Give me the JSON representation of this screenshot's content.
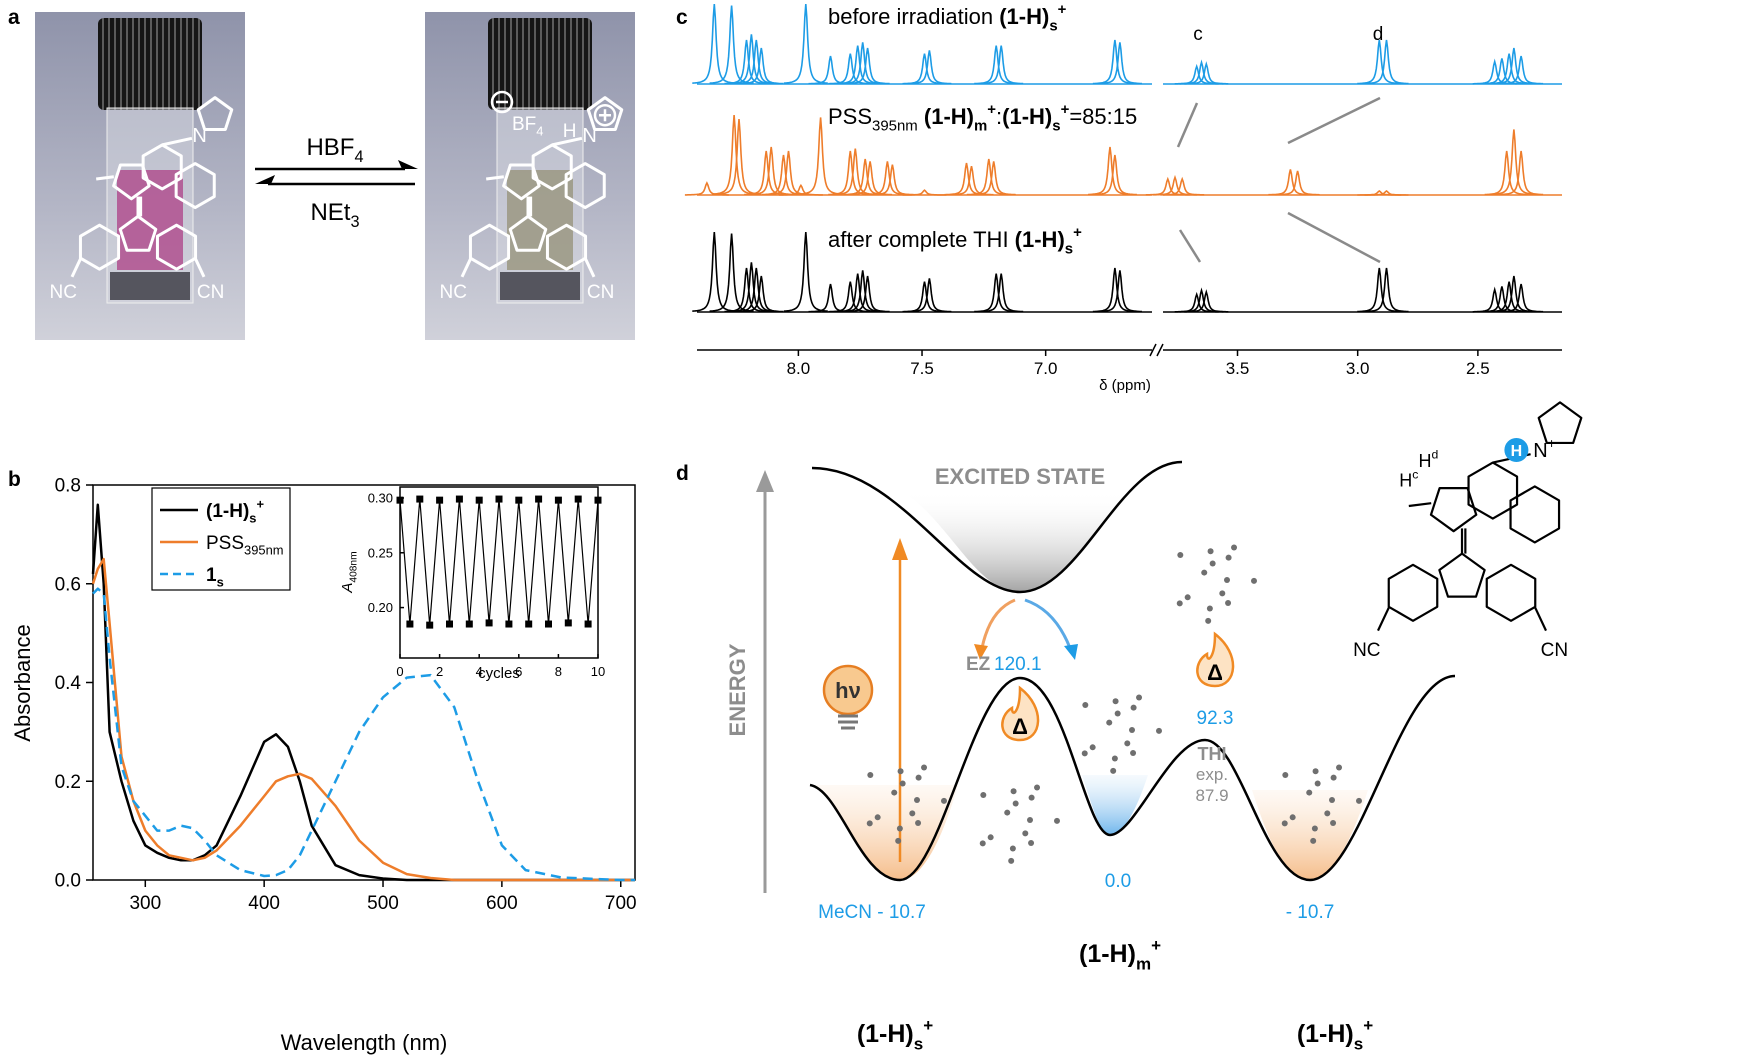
{
  "panel_labels": [
    "a",
    "b",
    "c",
    "d"
  ],
  "panel_a": {
    "forward": [
      {
        "text": "HBF"
      },
      {
        "text": "4",
        "style": "sub"
      }
    ],
    "backward": [
      {
        "text": "NEt"
      },
      {
        "text": "3",
        "style": "sub"
      }
    ],
    "left_atoms": {
      "n": "N",
      "nc": "NC",
      "cn": "CN"
    },
    "right_atoms": {
      "n": "N",
      "h": "H",
      "nc": "NC",
      "cn": "CN",
      "counterion": [
        {
          "text": "BF"
        },
        {
          "text": "4",
          "style": "sub"
        }
      ]
    }
  },
  "chart_data": [
    {
      "type": "line",
      "xlabel": "Wavelength (nm)",
      "ylabel": "Absorbance",
      "xlim": [
        256,
        712
      ],
      "xticks": [
        300,
        400,
        500,
        600,
        700
      ],
      "ylim": [
        0,
        0.8
      ],
      "yticks": [
        {
          "value": 0,
          "label": "0.0"
        },
        0.2,
        0.4,
        0.6,
        0.8
      ],
      "legend": "upper left",
      "x": [
        256,
        260,
        265,
        270,
        280,
        290,
        300,
        310,
        320,
        330,
        340,
        350,
        360,
        380,
        400,
        410,
        420,
        430,
        440,
        460,
        480,
        500,
        520,
        540,
        560,
        580,
        600,
        620,
        650,
        700,
        712
      ],
      "series": [
        {
          "name": [
            {
              "text": "(1-H)",
              "style": "b"
            },
            {
              "text": "s",
              "style": "bsub"
            },
            {
              "text": "+",
              "style": "bsup"
            }
          ],
          "color": "#000000",
          "dash": "solid",
          "values": [
            0.62,
            0.76,
            0.6,
            0.3,
            0.2,
            0.12,
            0.07,
            0.055,
            0.045,
            0.04,
            0.04,
            0.05,
            0.07,
            0.17,
            0.28,
            0.295,
            0.27,
            0.2,
            0.11,
            0.03,
            0.01,
            0.003,
            0,
            0,
            0,
            0,
            0,
            0,
            0,
            0,
            0
          ]
        },
        {
          "name": [
            {
              "text": "PSS"
            },
            {
              "text": "395nm",
              "style": "sub"
            }
          ],
          "color": "#ee7d2b",
          "dash": "solid",
          "values": [
            0.6,
            0.63,
            0.65,
            0.52,
            0.25,
            0.16,
            0.1,
            0.07,
            0.05,
            0.045,
            0.04,
            0.045,
            0.06,
            0.11,
            0.17,
            0.2,
            0.21,
            0.215,
            0.205,
            0.15,
            0.08,
            0.035,
            0.012,
            0.004,
            0,
            0,
            0,
            0,
            0,
            0,
            0
          ]
        },
        {
          "name": [
            {
              "text": "1",
              "style": "b"
            },
            {
              "text": "s",
              "style": "bsub"
            }
          ],
          "color": "#1d9ce6",
          "dash": "dashed",
          "values": [
            0.58,
            0.59,
            0.58,
            0.45,
            0.23,
            0.16,
            0.13,
            0.1,
            0.1,
            0.11,
            0.105,
            0.08,
            0.05,
            0.02,
            0.008,
            0.01,
            0.02,
            0.05,
            0.1,
            0.2,
            0.3,
            0.37,
            0.41,
            0.415,
            0.35,
            0.2,
            0.07,
            0.02,
            0.005,
            0,
            0
          ]
        }
      ]
    },
    {
      "type": "line",
      "markers": "square",
      "xlabel": "cycles",
      "ylabel": [
        {
          "text": "A",
          "style": "i"
        },
        {
          "text": "408nm",
          "style": "sub"
        }
      ],
      "xlim": [
        0,
        10
      ],
      "xticks": [
        0,
        2,
        4,
        6,
        8,
        10
      ],
      "ylim": [
        0.154,
        0.31
      ],
      "yticks": [
        {
          "value": 0.2,
          "label": "0.20"
        },
        {
          "value": 0.25,
          "label": "0.25"
        },
        {
          "value": 0.3,
          "label": "0.30"
        }
      ],
      "x": [
        0,
        0.5,
        1,
        1.5,
        2,
        2.5,
        3,
        3.5,
        4,
        4.5,
        5,
        5.5,
        6,
        6.5,
        7,
        7.5,
        8,
        8.5,
        9,
        9.5,
        10
      ],
      "series": [
        {
          "color": "#000000",
          "values": [
            0.298,
            0.185,
            0.299,
            0.184,
            0.298,
            0.185,
            0.299,
            0.185,
            0.298,
            0.186,
            0.299,
            0.185,
            0.298,
            0.185,
            0.299,
            0.185,
            0.298,
            0.186,
            0.299,
            0.185,
            0.298
          ]
        }
      ]
    },
    {
      "type": "nmr",
      "xlabel": "δ (ppm)",
      "peak_labels": [
        "c",
        "d"
      ],
      "segments": [
        {
          "xlim": [
            8.41,
            6.57
          ],
          "xticks": [
            {
              "value": 8,
              "label": "8.0"
            },
            7.5,
            {
              "value": 7,
              "label": "7.0"
            }
          ]
        },
        {
          "xlim": [
            3.81,
            2.15
          ],
          "xticks": [
            3.5,
            {
              "value": 3,
              "label": "3.0"
            },
            2.5
          ]
        }
      ],
      "series": [
        {
          "color": "#1d9ce6",
          "label": [
            {
              "text": "before irradiation "
            },
            {
              "text": "(1-H)",
              "style": "b"
            },
            {
              "text": "s",
              "style": "bsub"
            },
            {
              "text": "+",
              "style": "bsup"
            }
          ],
          "x": [
            8.34,
            8.27,
            8.21,
            8.19,
            8.17,
            8.15,
            7.97,
            7.87,
            7.79,
            7.76,
            7.74,
            7.72,
            7.49,
            7.47,
            7.2,
            7.18,
            6.72,
            6.7,
            3.67,
            3.65,
            3.63,
            2.91,
            2.88,
            2.43,
            2.4,
            2.37,
            2.35,
            2.32
          ],
          "values": [
            1.0,
            0.98,
            0.55,
            0.62,
            0.55,
            0.45,
            1.0,
            0.35,
            0.38,
            0.48,
            0.52,
            0.45,
            0.38,
            0.42,
            0.48,
            0.48,
            0.55,
            0.52,
            0.22,
            0.27,
            0.25,
            0.55,
            0.55,
            0.28,
            0.32,
            0.38,
            0.45,
            0.35
          ]
        },
        {
          "color": "#ee7d2b",
          "label": [
            {
              "text": "PSS"
            },
            {
              "text": "395nm",
              "style": "sub"
            },
            {
              "text": " (1-H)",
              "style": "b"
            },
            {
              "text": "m",
              "style": "bsub"
            },
            {
              "text": "+",
              "style": "bsup"
            },
            {
              "text": ":"
            },
            {
              "text": "(1-H)",
              "style": "b"
            },
            {
              "text": "s",
              "style": "bsub"
            },
            {
              "text": "+",
              "style": "bsup"
            },
            {
              "text": "=85:15"
            }
          ],
          "x": [
            8.37,
            8.26,
            8.24,
            8.13,
            8.11,
            8.06,
            8.04,
            7.99,
            7.91,
            7.79,
            7.77,
            7.73,
            7.71,
            7.64,
            7.62,
            7.49,
            7.32,
            7.3,
            7.23,
            7.21,
            6.74,
            6.72,
            3.79,
            3.76,
            3.73,
            3.28,
            3.25,
            2.91,
            2.88,
            2.38,
            2.35,
            2.32
          ],
          "values": [
            0.15,
            1.0,
            0.95,
            0.55,
            0.6,
            0.5,
            0.55,
            0.12,
            0.97,
            0.55,
            0.58,
            0.45,
            0.42,
            0.42,
            0.38,
            0.06,
            0.4,
            0.36,
            0.45,
            0.42,
            0.6,
            0.5,
            0.2,
            0.22,
            0.2,
            0.32,
            0.3,
            0.05,
            0.05,
            0.55,
            0.82,
            0.55
          ]
        },
        {
          "color": "#000000",
          "label": [
            {
              "text": "after complete THI "
            },
            {
              "text": "(1-H)",
              "style": "b"
            },
            {
              "text": "s",
              "style": "bsub"
            },
            {
              "text": "+",
              "style": "bsup"
            }
          ],
          "x": [
            8.34,
            8.27,
            8.21,
            8.19,
            8.17,
            8.15,
            7.97,
            7.87,
            7.79,
            7.76,
            7.74,
            7.72,
            7.49,
            7.47,
            7.2,
            7.18,
            6.72,
            6.7,
            3.67,
            3.65,
            3.63,
            2.91,
            2.88,
            2.43,
            2.4,
            2.37,
            2.35,
            2.32
          ],
          "values": [
            1.0,
            0.98,
            0.55,
            0.62,
            0.55,
            0.45,
            1.0,
            0.35,
            0.38,
            0.48,
            0.52,
            0.45,
            0.38,
            0.42,
            0.48,
            0.48,
            0.55,
            0.52,
            0.22,
            0.27,
            0.25,
            0.55,
            0.55,
            0.28,
            0.32,
            0.38,
            0.45,
            0.35
          ]
        }
      ]
    }
  ],
  "panel_d": {
    "excited_state": "EXCITED STATE",
    "energy_axis": "ENERGY",
    "hv": "hν",
    "delta": [
      "Δ",
      "Δ"
    ],
    "ez": "EZ",
    "ez_value": "120.1",
    "thi_value": "92.3",
    "thi": "THI",
    "exp": "exp.",
    "exp_value": "87.9",
    "m_value": "0.0",
    "s_left_value": "MeCN - 10.7",
    "s_right_value": "- 10.7",
    "s_left": [
      {
        "text": "(1-H)",
        "style": "b"
      },
      {
        "text": "s",
        "style": "bsub"
      },
      {
        "text": "+",
        "style": "bsup"
      }
    ],
    "m_label": [
      {
        "text": "(1-H)",
        "style": "b"
      },
      {
        "text": "m",
        "style": "bsub"
      },
      {
        "text": "+",
        "style": "bsup"
      }
    ],
    "s_right": [
      {
        "text": "(1-H)",
        "style": "b"
      },
      {
        "text": "s",
        "style": "bsub"
      },
      {
        "text": "+",
        "style": "bsup"
      }
    ],
    "structure": {
      "hd": [
        {
          "text": "H"
        },
        {
          "text": "d",
          "style": "sup"
        }
      ],
      "hc": [
        {
          "text": "H"
        },
        {
          "text": "c",
          "style": "sup"
        }
      ],
      "h": "H",
      "n": [
        {
          "text": "N"
        },
        {
          "text": "+",
          "style": "sup"
        }
      ],
      "nc": "NC",
      "cn": "CN"
    }
  }
}
